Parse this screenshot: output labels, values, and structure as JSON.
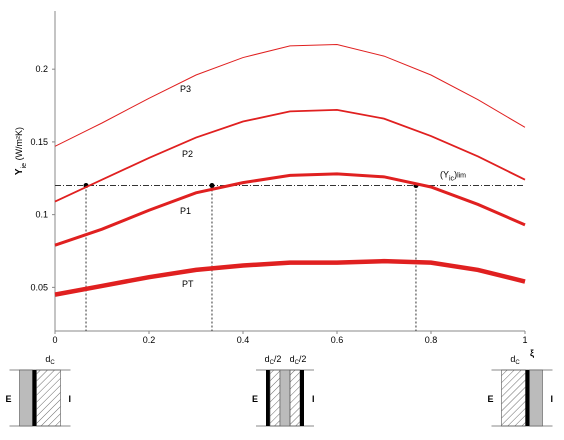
{
  "chart_data": {
    "type": "line",
    "x": [
      0,
      0.1,
      0.2,
      0.3,
      0.4,
      0.5,
      0.6,
      0.7,
      0.8,
      0.9,
      1
    ],
    "series": [
      {
        "name": "P3",
        "color": "#e02020",
        "line_width": 1,
        "values": [
          0.147,
          0.163,
          0.18,
          0.196,
          0.208,
          0.216,
          0.217,
          0.209,
          0.196,
          0.179,
          0.16
        ]
      },
      {
        "name": "P2",
        "color": "#e02020",
        "line_width": 1.8,
        "values": [
          0.109,
          0.124,
          0.139,
          0.153,
          0.164,
          0.171,
          0.172,
          0.166,
          0.154,
          0.14,
          0.124
        ]
      },
      {
        "name": "P1",
        "color": "#e02020",
        "line_width": 3,
        "values": [
          0.079,
          0.09,
          0.103,
          0.115,
          0.122,
          0.127,
          0.128,
          0.126,
          0.119,
          0.107,
          0.093
        ]
      },
      {
        "name": "PT",
        "color": "#e02020",
        "line_width": 4.5,
        "values": [
          0.045,
          0.051,
          0.057,
          0.062,
          0.065,
          0.067,
          0.067,
          0.068,
          0.067,
          0.062,
          0.054
        ]
      }
    ],
    "threshold": 0.12,
    "threshold_label": [
      "(Y",
      "ic",
      ")",
      "lim"
    ],
    "intersections": [
      0.066,
      0.334,
      0.768
    ],
    "ylabel": [
      "Y",
      "ie",
      " (W/m²K)"
    ],
    "xlabel": "ξ",
    "xlim": [
      0,
      1
    ],
    "ylim": [
      0.02,
      0.24
    ],
    "xticks": [
      0,
      0.2,
      0.4,
      0.6,
      0.8,
      1
    ],
    "yticks": [
      0.05,
      0.1,
      0.15,
      0.2
    ],
    "diagrams": [
      {
        "outside": "E",
        "inside": "I",
        "dims": [
          [
            "d",
            "C",
            ""
          ]
        ]
      },
      {
        "outside": "E",
        "inside": "I",
        "dims": [
          [
            "d",
            "C",
            "/2"
          ],
          [
            "d",
            "C",
            "/2"
          ]
        ]
      },
      {
        "outside": "E",
        "inside": "I",
        "dims": [
          [
            "d",
            "C",
            ""
          ]
        ]
      }
    ]
  }
}
